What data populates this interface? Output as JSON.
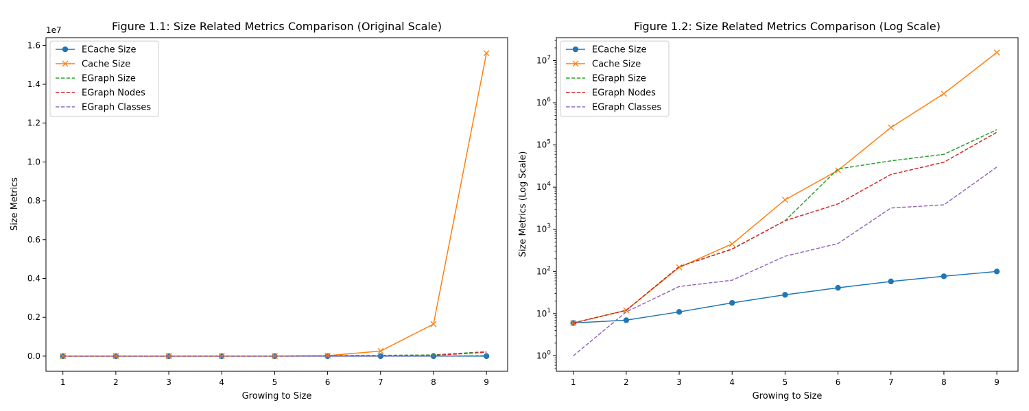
{
  "chart_data": [
    {
      "type": "line",
      "title": "Figure 1.1: Size Related Metrics Comparison (Original Scale)",
      "xlabel": "Growing to Size",
      "ylabel": "Size Metrics",
      "offset_label": "1e7",
      "y_scale": "linear",
      "xlim": [
        0.68,
        9.4
      ],
      "ylim": [
        -780000,
        16400000
      ],
      "x_ticks": [
        1,
        2,
        3,
        4,
        5,
        6,
        7,
        8,
        9
      ],
      "y_ticks": [
        0,
        2000000,
        4000000,
        6000000,
        8000000,
        10000000,
        12000000,
        14000000,
        16000000
      ],
      "y_tick_labels": [
        "0.0",
        "0.2",
        "0.4",
        "0.6",
        "0.8",
        "1.0",
        "1.2",
        "1.4",
        "1.6"
      ],
      "grid": false,
      "legend_position": "top-left",
      "x": [
        1,
        2,
        3,
        4,
        5,
        6,
        7,
        8,
        9
      ],
      "series": [
        {
          "name": "ECache Size",
          "color": "#1f77b4",
          "style": "solid",
          "marker": "circle",
          "values": [
            6,
            7,
            11,
            18,
            28,
            41,
            58,
            77,
            100
          ]
        },
        {
          "name": "Cache Size",
          "color": "#ff7f0e",
          "style": "solid",
          "marker": "x",
          "values": [
            6,
            12,
            125,
            450,
            5000,
            25000,
            260000,
            1650000,
            15600000
          ]
        },
        {
          "name": "EGraph Size",
          "color": "#2ca02c",
          "style": "dashed",
          "marker": "none",
          "values": [
            6,
            12,
            130,
            340,
            1600,
            27000,
            42000,
            60000,
            230000
          ]
        },
        {
          "name": "EGraph Nodes",
          "color": "#d62728",
          "style": "dashed",
          "marker": "none",
          "values": [
            6,
            12,
            130,
            340,
            1600,
            4000,
            20000,
            39000,
            200000
          ]
        },
        {
          "name": "EGraph Classes",
          "color": "#9467bd",
          "style": "dashed",
          "marker": "none",
          "values": [
            1,
            11,
            44,
            62,
            230,
            460,
            3200,
            3800,
            30000
          ]
        }
      ]
    },
    {
      "type": "line",
      "title": "Figure 1.2: Size Related Metrics Comparison (Log Scale)",
      "xlabel": "Growing to Size",
      "ylabel": "Size Metrics (Log Scale)",
      "y_scale": "log",
      "xlim": [
        0.68,
        9.4
      ],
      "ylim": [
        0.43,
        35000000
      ],
      "x_ticks": [
        1,
        2,
        3,
        4,
        5,
        6,
        7,
        8,
        9
      ],
      "y_ticks": [
        1,
        10,
        100,
        1000,
        10000,
        100000,
        1000000,
        10000000
      ],
      "y_tick_exponents": [
        "0",
        "1",
        "2",
        "3",
        "4",
        "5",
        "6",
        "7"
      ],
      "grid": false,
      "legend_position": "top-left",
      "x": [
        1,
        2,
        3,
        4,
        5,
        6,
        7,
        8,
        9
      ],
      "series": [
        {
          "name": "ECache Size",
          "color": "#1f77b4",
          "style": "solid",
          "marker": "circle",
          "values": [
            6,
            7,
            11,
            18,
            28,
            41,
            58,
            77,
            100
          ]
        },
        {
          "name": "Cache Size",
          "color": "#ff7f0e",
          "style": "solid",
          "marker": "x",
          "values": [
            6,
            12,
            125,
            450,
            5000,
            25000,
            260000,
            1650000,
            15600000
          ]
        },
        {
          "name": "EGraph Size",
          "color": "#2ca02c",
          "style": "dashed",
          "marker": "none",
          "values": [
            6,
            12,
            130,
            340,
            1600,
            27000,
            42000,
            60000,
            230000
          ]
        },
        {
          "name": "EGraph Nodes",
          "color": "#d62728",
          "style": "dashed",
          "marker": "none",
          "values": [
            6,
            12,
            130,
            340,
            1600,
            4000,
            20000,
            39000,
            200000
          ]
        },
        {
          "name": "EGraph Classes",
          "color": "#9467bd",
          "style": "dashed",
          "marker": "none",
          "values": [
            1,
            11,
            44,
            62,
            230,
            460,
            3200,
            3800,
            30000
          ]
        }
      ]
    }
  ]
}
